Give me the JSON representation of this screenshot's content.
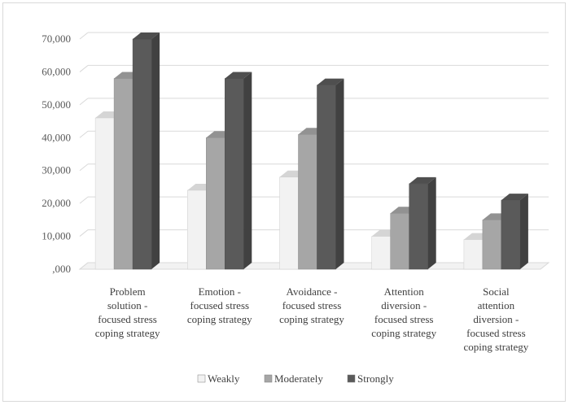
{
  "chart_data": {
    "type": "bar",
    "title": "",
    "xlabel": "",
    "ylabel": "",
    "categories": [
      [
        "Problem",
        "solution -",
        "focused stress",
        "coping strategy"
      ],
      [
        "Emotion -",
        "focused stress",
        "coping strategy"
      ],
      [
        "Avoidance -",
        "focused stress",
        "coping strategy"
      ],
      [
        "Attention",
        "diversion -",
        "focused stress",
        "coping strategy"
      ],
      [
        "Social",
        "attention",
        "diversion -",
        "focused stress",
        "coping strategy"
      ]
    ],
    "series": [
      {
        "name": "Weakly",
        "values": [
          46000,
          24000,
          28000,
          10000,
          9000
        ],
        "color": "#f2f2f2"
      },
      {
        "name": "Moderately",
        "values": [
          58000,
          40000,
          41000,
          17000,
          15000
        ],
        "color": "#a6a6a6"
      },
      {
        "name": "Strongly",
        "values": [
          70000,
          58000,
          56000,
          26000,
          21000
        ],
        "color": "#5a5a5a"
      }
    ],
    "ylim": [
      0,
      70000
    ],
    "yticks": [
      0,
      10000,
      20000,
      30000,
      40000,
      50000,
      60000,
      70000
    ],
    "ytick_labels": [
      ",000",
      "10,000",
      "20,000",
      "30,000",
      "40,000",
      "50,000",
      "60,000",
      "70,000"
    ],
    "grid": true,
    "legend_position": "bottom",
    "style": "3d-column"
  }
}
